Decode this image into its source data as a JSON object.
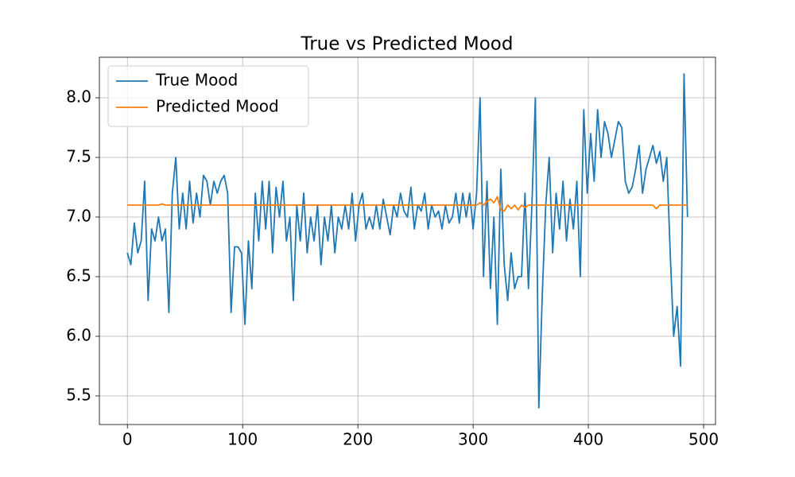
{
  "chart_data": {
    "type": "line",
    "title": "True vs Predicted Mood",
    "x": [
      0,
      3,
      6,
      9,
      12,
      15,
      18,
      21,
      24,
      27,
      30,
      33,
      36,
      39,
      42,
      45,
      48,
      51,
      54,
      57,
      60,
      63,
      66,
      69,
      72,
      75,
      78,
      81,
      84,
      87,
      90,
      93,
      96,
      99,
      102,
      105,
      108,
      111,
      114,
      117,
      120,
      123,
      126,
      129,
      132,
      135,
      138,
      141,
      144,
      147,
      150,
      153,
      156,
      159,
      162,
      165,
      168,
      171,
      174,
      177,
      180,
      183,
      186,
      189,
      192,
      195,
      198,
      201,
      204,
      207,
      210,
      213,
      216,
      219,
      222,
      225,
      228,
      231,
      234,
      237,
      240,
      243,
      246,
      249,
      252,
      255,
      258,
      261,
      264,
      267,
      270,
      273,
      276,
      279,
      282,
      285,
      288,
      291,
      294,
      297,
      300,
      303,
      306,
      309,
      312,
      315,
      318,
      321,
      324,
      327,
      330,
      333,
      336,
      339,
      342,
      345,
      348,
      351,
      354,
      357,
      360,
      363,
      366,
      369,
      372,
      375,
      378,
      381,
      384,
      387,
      390,
      393,
      396,
      399,
      402,
      405,
      408,
      411,
      414,
      417,
      420,
      423,
      426,
      429,
      432,
      435,
      438,
      441,
      444,
      447,
      450,
      453,
      456,
      459,
      462,
      465,
      468,
      471,
      474,
      477,
      480,
      483,
      486
    ],
    "series": [
      {
        "name": "True Mood",
        "color": "#1f77b4",
        "values": [
          6.7,
          6.6,
          6.95,
          6.7,
          6.8,
          7.3,
          6.3,
          6.9,
          6.8,
          7.0,
          6.8,
          6.9,
          6.2,
          7.2,
          7.5,
          6.9,
          7.2,
          6.9,
          7.3,
          6.95,
          7.2,
          7.0,
          7.35,
          7.3,
          7.1,
          7.3,
          7.2,
          7.3,
          7.35,
          7.2,
          6.2,
          6.75,
          6.75,
          6.7,
          6.1,
          6.8,
          6.4,
          7.2,
          6.8,
          7.3,
          6.9,
          7.3,
          6.7,
          7.25,
          7.0,
          7.3,
          6.8,
          7.0,
          6.3,
          7.1,
          6.8,
          7.2,
          6.7,
          7.0,
          6.8,
          7.1,
          6.6,
          7.0,
          6.8,
          7.1,
          6.7,
          7.0,
          6.9,
          7.1,
          6.9,
          7.2,
          6.8,
          7.1,
          7.2,
          6.9,
          7.0,
          6.9,
          7.1,
          6.9,
          7.15,
          7.0,
          6.85,
          7.1,
          7.0,
          7.2,
          7.05,
          7.0,
          7.25,
          6.9,
          7.1,
          7.05,
          7.2,
          6.9,
          7.1,
          7.0,
          7.05,
          6.9,
          7.1,
          6.95,
          7.0,
          7.2,
          6.95,
          7.2,
          7.0,
          7.2,
          6.9,
          7.2,
          8.0,
          6.5,
          7.3,
          6.4,
          7.0,
          6.1,
          7.4,
          6.6,
          6.3,
          6.7,
          6.4,
          6.5,
          6.5,
          7.2,
          6.4,
          7.1,
          8.0,
          5.4,
          6.35,
          7.1,
          7.5,
          6.7,
          7.2,
          6.9,
          7.3,
          6.8,
          7.15,
          6.9,
          7.3,
          6.5,
          7.9,
          7.2,
          7.7,
          7.3,
          7.9,
          7.5,
          7.8,
          7.7,
          7.5,
          7.65,
          7.8,
          7.75,
          7.3,
          7.2,
          7.25,
          7.4,
          7.6,
          7.2,
          7.4,
          7.5,
          7.6,
          7.45,
          7.55,
          7.3,
          7.5,
          6.7,
          6.0,
          6.25,
          5.75,
          8.2,
          7.0
        ]
      },
      {
        "name": "Predicted Mood",
        "color": "#ff7f0e",
        "values": [
          7.1,
          7.1,
          7.1,
          7.1,
          7.1,
          7.1,
          7.1,
          7.1,
          7.1,
          7.1,
          7.11,
          7.1,
          7.1,
          7.1,
          7.1,
          7.1,
          7.1,
          7.1,
          7.1,
          7.1,
          7.1,
          7.1,
          7.1,
          7.1,
          7.1,
          7.1,
          7.1,
          7.1,
          7.1,
          7.1,
          7.1,
          7.1,
          7.1,
          7.1,
          7.1,
          7.1,
          7.1,
          7.1,
          7.1,
          7.1,
          7.1,
          7.1,
          7.1,
          7.1,
          7.1,
          7.1,
          7.1,
          7.1,
          7.1,
          7.1,
          7.1,
          7.1,
          7.1,
          7.1,
          7.1,
          7.1,
          7.1,
          7.1,
          7.1,
          7.1,
          7.1,
          7.1,
          7.1,
          7.1,
          7.1,
          7.1,
          7.1,
          7.1,
          7.1,
          7.1,
          7.1,
          7.1,
          7.1,
          7.1,
          7.1,
          7.1,
          7.1,
          7.1,
          7.1,
          7.1,
          7.1,
          7.1,
          7.1,
          7.1,
          7.1,
          7.1,
          7.1,
          7.1,
          7.1,
          7.1,
          7.1,
          7.1,
          7.1,
          7.1,
          7.1,
          7.1,
          7.1,
          7.1,
          7.1,
          7.1,
          7.1,
          7.1,
          7.12,
          7.1,
          7.13,
          7.15,
          7.12,
          7.17,
          7.06,
          7.05,
          7.1,
          7.07,
          7.1,
          7.06,
          7.1,
          7.08,
          7.1,
          7.1,
          7.1,
          7.1,
          7.1,
          7.1,
          7.1,
          7.1,
          7.1,
          7.1,
          7.1,
          7.1,
          7.1,
          7.1,
          7.1,
          7.1,
          7.1,
          7.1,
          7.1,
          7.1,
          7.1,
          7.1,
          7.1,
          7.1,
          7.1,
          7.1,
          7.1,
          7.1,
          7.1,
          7.1,
          7.1,
          7.1,
          7.1,
          7.1,
          7.1,
          7.1,
          7.1,
          7.07,
          7.1,
          7.1,
          7.1,
          7.1,
          7.1,
          7.1,
          7.1,
          7.1,
          7.1
        ]
      }
    ],
    "xlim": [
      -24.3,
      510.3
    ],
    "ylim": [
      5.26,
      8.34
    ],
    "xticks": [
      0,
      100,
      200,
      300,
      400,
      500
    ],
    "yticks": [
      5.5,
      {
        "value": 6,
        "label": "6.0"
      },
      6.5,
      {
        "value": 7,
        "label": "7.0"
      },
      7.5,
      {
        "value": 8,
        "label": "8.0"
      }
    ],
    "grid": true,
    "legend": "upper-left"
  }
}
